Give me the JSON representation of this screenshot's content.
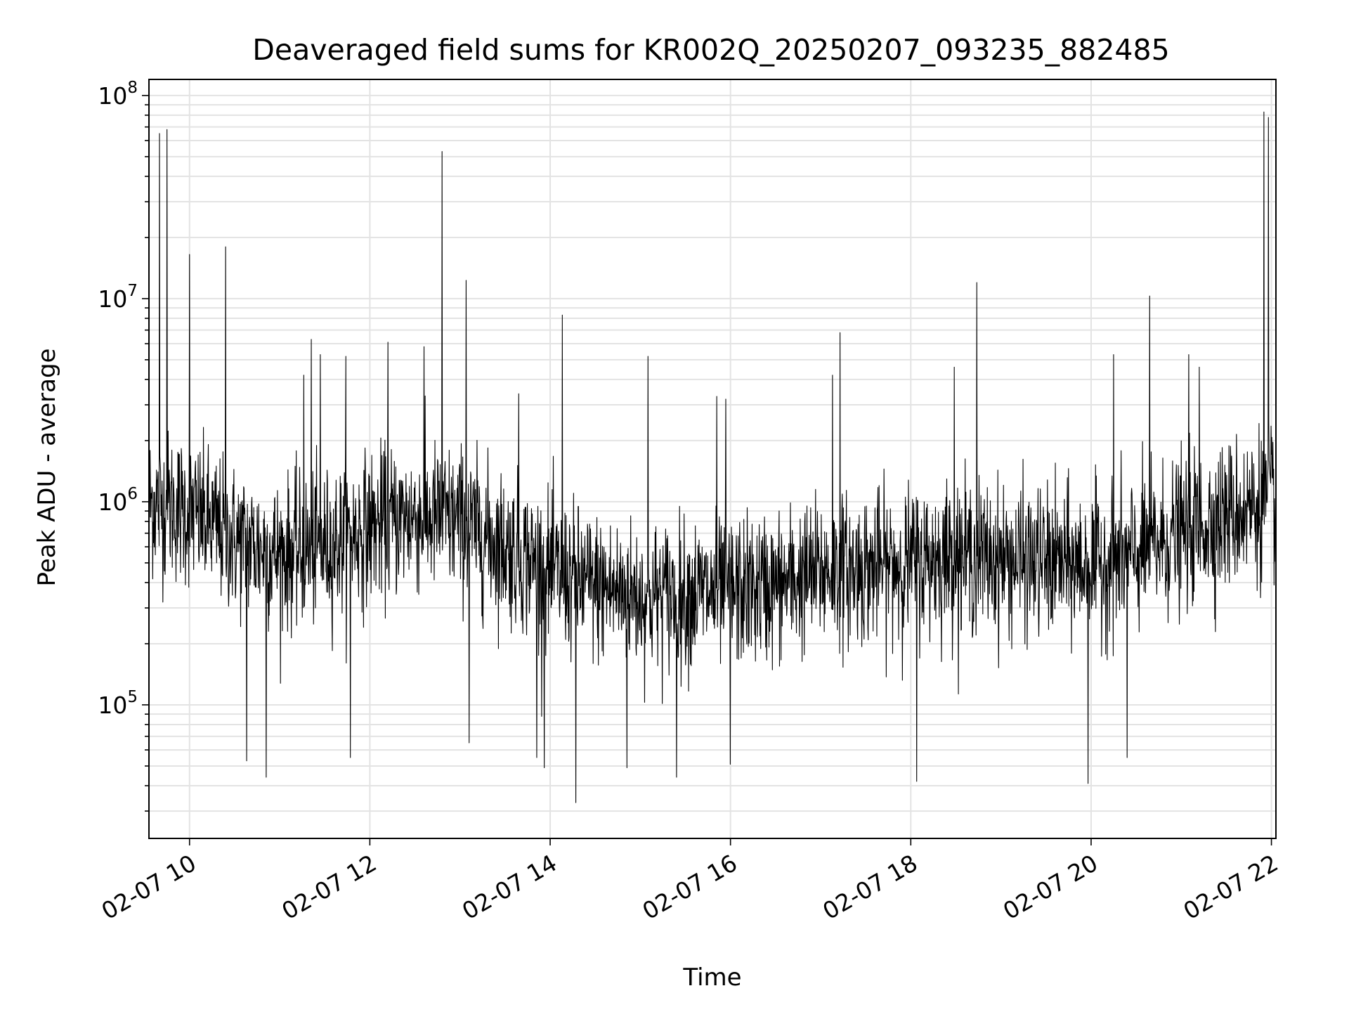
{
  "chart_data": {
    "type": "line",
    "title": "Deaveraged field sums for KR002Q_20250207_093235_882485",
    "xlabel": "Time",
    "ylabel": "Peak ADU - average",
    "yscale": "log",
    "grid": true,
    "x_range": [
      "2025-02-07 09:33",
      "2025-02-07 22:03"
    ],
    "y_range": [
      22000,
      120000000
    ],
    "x_ticks": [
      {
        "value": "2025-02-07 10:00",
        "label": "02-07 10"
      },
      {
        "value": "2025-02-07 12:00",
        "label": "02-07 12"
      },
      {
        "value": "2025-02-07 14:00",
        "label": "02-07 14"
      },
      {
        "value": "2025-02-07 16:00",
        "label": "02-07 16"
      },
      {
        "value": "2025-02-07 18:00",
        "label": "02-07 18"
      },
      {
        "value": "2025-02-07 20:00",
        "label": "02-07 20"
      },
      {
        "value": "2025-02-07 22:00",
        "label": "02-07 22"
      }
    ],
    "y_ticks": [
      {
        "value": 100000,
        "base": "10",
        "exp": "5"
      },
      {
        "value": 1000000,
        "base": "10",
        "exp": "6"
      },
      {
        "value": 10000000,
        "base": "10",
        "exp": "7"
      },
      {
        "value": 100000000,
        "base": "10",
        "exp": "8"
      }
    ],
    "series": [
      {
        "color": "#000000",
        "baseline": [
          [
            "2025-02-07 09:33",
            1000000
          ],
          [
            "2025-02-07 10:00",
            900000
          ],
          [
            "2025-02-07 10:30",
            650000
          ],
          [
            "2025-02-07 11:00",
            550000
          ],
          [
            "2025-02-07 11:30",
            600000
          ],
          [
            "2025-02-07 12:00",
            750000
          ],
          [
            "2025-02-07 12:30",
            850000
          ],
          [
            "2025-02-07 13:00",
            800000
          ],
          [
            "2025-02-07 13:30",
            600000
          ],
          [
            "2025-02-07 14:00",
            450000
          ],
          [
            "2025-02-07 14:30",
            380000
          ],
          [
            "2025-02-07 15:00",
            340000
          ],
          [
            "2025-02-07 15:30",
            350000
          ],
          [
            "2025-02-07 16:00",
            360000
          ],
          [
            "2025-02-07 16:30",
            380000
          ],
          [
            "2025-02-07 17:00",
            450000
          ],
          [
            "2025-02-07 17:30",
            470000
          ],
          [
            "2025-02-07 18:00",
            500000
          ],
          [
            "2025-02-07 18:30",
            550000
          ],
          [
            "2025-02-07 19:00",
            520000
          ],
          [
            "2025-02-07 19:30",
            500000
          ],
          [
            "2025-02-07 20:00",
            480000
          ],
          [
            "2025-02-07 20:30",
            550000
          ],
          [
            "2025-02-07 21:00",
            700000
          ],
          [
            "2025-02-07 21:30",
            850000
          ],
          [
            "2025-02-07 22:03",
            1050000
          ]
        ],
        "peaks": [
          [
            "2025-02-07 09:40",
            65000000
          ],
          [
            "2025-02-07 09:45",
            68000000
          ],
          [
            "2025-02-07 10:00",
            16500000
          ],
          [
            "2025-02-07 10:24",
            18000000
          ],
          [
            "2025-02-07 11:16",
            4200000
          ],
          [
            "2025-02-07 11:21",
            6300000
          ],
          [
            "2025-02-07 11:27",
            5300000
          ],
          [
            "2025-02-07 11:44",
            5200000
          ],
          [
            "2025-02-07 12:12",
            6100000
          ],
          [
            "2025-02-07 12:36",
            5800000
          ],
          [
            "2025-02-07 12:48",
            53000000
          ],
          [
            "2025-02-07 13:04",
            12300000
          ],
          [
            "2025-02-07 13:39",
            3400000
          ],
          [
            "2025-02-07 14:08",
            8300000
          ],
          [
            "2025-02-07 15:05",
            5200000
          ],
          [
            "2025-02-07 15:51",
            3300000
          ],
          [
            "2025-02-07 15:57",
            3200000
          ],
          [
            "2025-02-07 17:08",
            4200000
          ],
          [
            "2025-02-07 17:13",
            6800000
          ],
          [
            "2025-02-07 18:29",
            4600000
          ],
          [
            "2025-02-07 18:44",
            12000000
          ],
          [
            "2025-02-07 20:15",
            5300000
          ],
          [
            "2025-02-07 20:39",
            10300000
          ],
          [
            "2025-02-07 21:05",
            5300000
          ],
          [
            "2025-02-07 21:12",
            4600000
          ],
          [
            "2025-02-07 21:55",
            83000000
          ],
          [
            "2025-02-07 21:58",
            78000000
          ]
        ],
        "dips": [
          [
            "2025-02-07 10:38",
            53000
          ],
          [
            "2025-02-07 10:51",
            44000
          ],
          [
            "2025-02-07 11:47",
            55000
          ],
          [
            "2025-02-07 13:06",
            65000
          ],
          [
            "2025-02-07 13:51",
            55000
          ],
          [
            "2025-02-07 13:56",
            49000
          ],
          [
            "2025-02-07 14:17",
            33000
          ],
          [
            "2025-02-07 14:51",
            49000
          ],
          [
            "2025-02-07 15:24",
            44000
          ],
          [
            "2025-02-07 16:00",
            51000
          ],
          [
            "2025-02-07 18:04",
            42000
          ],
          [
            "2025-02-07 19:58",
            41000
          ],
          [
            "2025-02-07 20:24",
            55000
          ]
        ]
      }
    ]
  }
}
